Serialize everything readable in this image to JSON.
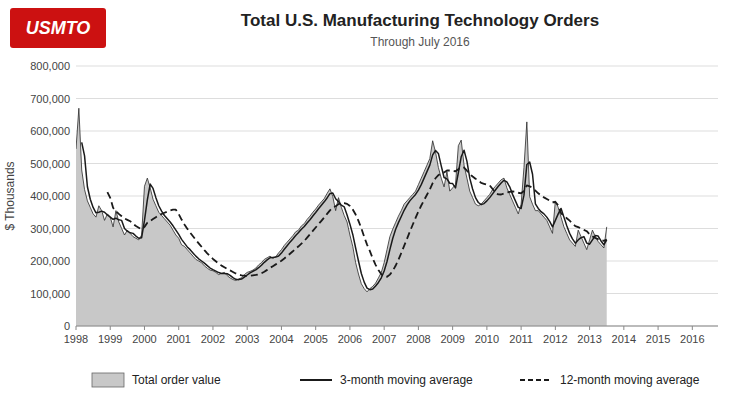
{
  "chart_data": {
    "type": "area",
    "title": "Total U.S. Manufacturing Technology Orders",
    "subtitle": "Through July 2016",
    "ylabel": "$ Thousands",
    "annotations": [
      "USMTO"
    ],
    "xlim": [
      1998,
      2016.75
    ],
    "xticks": [
      1998,
      1999,
      2000,
      2001,
      2002,
      2003,
      2004,
      2005,
      2006,
      2007,
      2008,
      2009,
      2010,
      2011,
      2012,
      2013,
      2014,
      2015,
      2016
    ],
    "ylim": [
      0,
      800000
    ],
    "yticks": [
      0,
      {
        "value": 100000,
        "label": "100,000"
      },
      {
        "value": 200000,
        "label": "200,000"
      },
      {
        "value": 300000,
        "label": "300,000"
      },
      {
        "value": 400000,
        "label": "400,000"
      },
      {
        "value": 500000,
        "label": "500,000"
      },
      {
        "value": 600000,
        "label": "600,000"
      },
      {
        "value": 700000,
        "label": "700,000"
      },
      {
        "value": 800000,
        "label": "800,000"
      }
    ],
    "grid": "y",
    "legend": "bottom",
    "x": [
      1998,
      1998.0833333333,
      1998.1666666667,
      1998.25,
      1998.3333333333,
      1998.4166666667,
      1998.5,
      1998.5833333333,
      1998.6666666667,
      1998.75,
      1998.8333333333,
      1998.9166666667,
      1999,
      1999.0833333333,
      1999.1666666667,
      1999.25,
      1999.3333333333,
      1999.4166666667,
      1999.5,
      1999.5833333333,
      1999.6666666667,
      1999.75,
      1999.8333333333,
      1999.9166666667,
      2000,
      2000.0833333333,
      2000.1666666667,
      2000.25,
      2000.3333333333,
      2000.4166666667,
      2000.5,
      2000.5833333333,
      2000.6666666667,
      2000.75,
      2000.8333333333,
      2000.9166666667,
      2001,
      2001.0833333333,
      2001.1666666667,
      2001.25,
      2001.3333333333,
      2001.4166666667,
      2001.5,
      2001.5833333333,
      2001.6666666667,
      2001.75,
      2001.8333333333,
      2001.9166666667,
      2002,
      2002.0833333333,
      2002.1666666667,
      2002.25,
      2002.3333333333,
      2002.4166666667,
      2002.5,
      2002.5833333333,
      2002.6666666667,
      2002.75,
      2002.8333333333,
      2002.9166666667,
      2003,
      2003.0833333333,
      2003.1666666667,
      2003.25,
      2003.3333333333,
      2003.4166666667,
      2003.5,
      2003.5833333333,
      2003.6666666667,
      2003.75,
      2003.8333333333,
      2003.9166666667,
      2004,
      2004.0833333333,
      2004.1666666667,
      2004.25,
      2004.3333333333,
      2004.4166666667,
      2004.5,
      2004.5833333333,
      2004.6666666667,
      2004.75,
      2004.8333333333,
      2004.9166666667,
      2005,
      2005.0833333333,
      2005.1666666667,
      2005.25,
      2005.3333333333,
      2005.4166666667,
      2005.5,
      2005.5833333333,
      2005.6666666667,
      2005.75,
      2005.8333333333,
      2005.9166666667,
      2006,
      2006.0833333333,
      2006.1666666667,
      2006.25,
      2006.3333333333,
      2006.4166666667,
      2006.5,
      2006.5833333333,
      2006.6666666667,
      2006.75,
      2006.8333333333,
      2006.9166666667,
      2007,
      2007.0833333333,
      2007.1666666667,
      2007.25,
      2007.3333333333,
      2007.4166666667,
      2007.5,
      2007.5833333333,
      2007.6666666667,
      2007.75,
      2007.8333333333,
      2007.9166666667,
      2008,
      2008.0833333333,
      2008.1666666667,
      2008.25,
      2008.3333333333,
      2008.4166666667,
      2008.5,
      2008.5833333333,
      2008.6666666667,
      2008.75,
      2008.8333333333,
      2008.9166666667,
      2009,
      2009.0833333333,
      2009.1666666667,
      2009.25,
      2009.3333333333,
      2009.4166666667,
      2009.5,
      2009.5833333333,
      2009.6666666667,
      2009.75,
      2009.8333333333,
      2009.9166666667,
      2010,
      2010.0833333333,
      2010.1666666667,
      2010.25,
      2010.3333333333,
      2010.4166666667,
      2010.5,
      2010.5833333333,
      2010.6666666667,
      2010.75,
      2010.8333333333,
      2010.9166666667,
      2011,
      2011.0833333333,
      2011.1666666667,
      2011.25,
      2011.3333333333,
      2011.4166666667,
      2011.5,
      2011.5833333333,
      2011.6666666667,
      2011.75,
      2011.8333333333,
      2011.9166666667,
      2012,
      2012.0833333333,
      2012.1666666667,
      2012.25,
      2012.3333333333,
      2012.4166666667,
      2012.5,
      2012.5833333333,
      2012.6666666667,
      2012.75,
      2012.8333333333,
      2012.9166666667,
      2013,
      2013.0833333333,
      2013.1666666667,
      2013.25,
      2013.3333333333,
      2013.4166666667,
      2013.5
    ],
    "series": [
      {
        "name": "Total order value",
        "type": "area",
        "color": "#c8c8c8",
        "values": [
          545000,
          670000,
          480000,
          420000,
          385000,
          365000,
          345000,
          335000,
          370000,
          355000,
          325000,
          345000,
          335000,
          305000,
          355000,
          320000,
          300000,
          280000,
          295000,
          285000,
          275000,
          270000,
          265000,
          280000,
          430000,
          455000,
          425000,
          390000,
          370000,
          350000,
          340000,
          330000,
          320000,
          310000,
          295000,
          280000,
          270000,
          250000,
          245000,
          235000,
          225000,
          215000,
          205000,
          200000,
          195000,
          185000,
          178000,
          172000,
          170000,
          165000,
          158000,
          162000,
          165000,
          155000,
          148000,
          143000,
          140000,
          145000,
          148000,
          158000,
          165000,
          168000,
          172000,
          178000,
          188000,
          195000,
          205000,
          210000,
          215000,
          208000,
          213000,
          225000,
          235000,
          248000,
          258000,
          268000,
          278000,
          290000,
          295000,
          308000,
          315000,
          328000,
          338000,
          350000,
          360000,
          372000,
          382000,
          392000,
          408000,
          422000,
          398000,
          355000,
          395000,
          365000,
          340000,
          320000,
          280000,
          245000,
          195000,
          160000,
          130000,
          115000,
          105000,
          115000,
          122000,
          132000,
          148000,
          165000,
          195000,
          235000,
          275000,
          298000,
          318000,
          338000,
          355000,
          375000,
          385000,
          395000,
          405000,
          415000,
          435000,
          455000,
          475000,
          495000,
          515000,
          570000,
          535000,
          488000,
          455000,
          428000,
          475000,
          415000,
          425000,
          435000,
          555000,
          572000,
          495000,
          455000,
          415000,
          395000,
          375000,
          370000,
          375000,
          385000,
          395000,
          405000,
          420000,
          430000,
          440000,
          450000,
          455000,
          425000,
          405000,
          385000,
          365000,
          345000,
          375000,
          488000,
          628000,
          398000,
          375000,
          355000,
          355000,
          345000,
          335000,
          325000,
          305000,
          285000,
          385000,
          365000,
          335000,
          305000,
          285000,
          265000,
          255000,
          245000,
          295000,
          275000,
          255000,
          235000,
          265000,
          295000,
          275000,
          260000,
          250000,
          240000,
          305000
        ]
      },
      {
        "name": "3-month moving average",
        "type": "line",
        "color": "#1a1a1a",
        "line_style": "solid",
        "values": [
          null,
          null,
          565000,
          523333.3333333333,
          428333.3333333333,
          390000,
          365000,
          348333.3333333333,
          350000,
          353333.3333333333,
          350000,
          341666.6666666667,
          335000,
          328333.3333333333,
          331666.6666666667,
          326666.6666666667,
          325000,
          300000,
          291666.6666666667,
          286666.6666666667,
          285000,
          276666.6666666667,
          270000,
          271666.6666666667,
          325000,
          388333.3333333333,
          436666.6666666667,
          423333.3333333333,
          395000,
          370000,
          353333.3333333333,
          340000,
          330000,
          320000,
          308333.3333333333,
          295000,
          281666.6666666667,
          266666.6666666667,
          255000,
          243333.3333333333,
          235000,
          225000,
          215000,
          206666.6666666667,
          200000,
          193333.3333333333,
          186000,
          178333.3333333333,
          173333.3333333333,
          169000,
          164333.3333333333,
          161666.6666666667,
          161666.6666666667,
          160666.6666666667,
          156000,
          148666.6666666667,
          143666.6666666667,
          142666.6666666667,
          144333.3333333333,
          150333.3333333333,
          157000,
          163666.6666666667,
          168333.3333333333,
          172666.6666666667,
          179333.3333333333,
          187000,
          196000,
          203333.3333333333,
          210000,
          211000,
          212000,
          215333.3333333333,
          224333.3333333333,
          236000,
          247000,
          258000,
          268000,
          278666.6666666667,
          287666.6666666667,
          297666.6666666667,
          306000,
          317000,
          327000,
          338666.6666666667,
          349333.3333333333,
          360666.6666666667,
          371333.3333333333,
          382000,
          394000,
          407333.3333333333,
          409333.3333333333,
          391666.6666666667,
          382666.6666666667,
          371666.6666666667,
          366666.6666666667,
          341666.6666666667,
          313333.3333333333,
          281666.6666666667,
          240000,
          200000,
          161666.6666666667,
          135000,
          116666.6666666667,
          111666.6666666667,
          114000,
          123000,
          134000,
          148333.3333333333,
          169333.3333333333,
          198333.3333333333,
          235000,
          269333.3333333333,
          297000,
          318000,
          337000,
          356000,
          371666.6666666667,
          385000,
          395000,
          405000,
          418333.3333333333,
          435000,
          455000,
          475000,
          495000,
          526666.6666666667,
          540000,
          531000,
          492666.6666666667,
          457000,
          452666.6666666667,
          439333.3333333333,
          438333.3333333333,
          425000,
          471666.6666666667,
          520666.6666666667,
          540666.6666666667,
          507333.3333333333,
          455000,
          421666.6666666667,
          395000,
          380000,
          373333.3333333333,
          376666.6666666667,
          385000,
          395000,
          406666.6666666667,
          418333.3333333333,
          430000,
          440000,
          448333.3333333333,
          443333.3333333333,
          428333.3333333333,
          405000,
          385000,
          365000,
          361666.6666666667,
          402666.6666666667,
          497000,
          504666.6666666667,
          467000,
          376000,
          361666.6666666667,
          351666.6666666667,
          345000,
          335000,
          321666.6666666667,
          305000,
          325000,
          345000,
          361666.6666666667,
          335000,
          308333.3333333333,
          285000,
          268333.3333333333,
          255000,
          265000,
          271666.6666666667,
          275000,
          255000,
          251666.6666666667,
          265000,
          278333.3333333333,
          276666.6666666667,
          261666.6666666667,
          250000,
          265000
        ]
      },
      {
        "name": "12-month moving average",
        "type": "line",
        "color": "#1a1a1a",
        "line_style": "dashed",
        "values": [
          null,
          null,
          null,
          null,
          null,
          null,
          null,
          null,
          null,
          null,
          null,
          411666.6666666667,
          394166.6666666667,
          363750,
          353333.3333333333,
          345000,
          337916.6666666667,
          330833.3333333333,
          326666.6666666667,
          322500,
          314583.3333333333,
          307500,
          302500,
          297083.3333333333,
          305000,
          317500,
          323333.3333333333,
          329166.6666666667,
          335000,
          340833.3333333333,
          344583.3333333333,
          348333.3333333333,
          352083.3333333333,
          355416.6666666667,
          357916.6666666667,
          357916.6666666667,
          344583.3333333333,
          327500,
          312500,
          299583.3333333333,
          287500,
          276250,
          265000,
          254166.6666666667,
          243750,
          233333.3333333333,
          223583.3333333333,
          214583.3333333333,
          206250,
          199166.6666666667,
          191916.6666666667,
          185833.3333333333,
          180833.3333333333,
          175833.3333333333,
          171083.3333333333,
          166333.3333333333,
          161750,
          158416.6666666667,
          155916.6666666667,
          154750,
          154333.3333333333,
          154583.3333333333,
          155750,
          157083.3333333333,
          159000,
          162333.3333333333,
          167083.3333333333,
          172666.6666666667,
          178916.6666666667,
          184166.6666666667,
          189583.3333333333,
          195166.6666666667,
          201000,
          207666.6666666667,
          214833.3333333333,
          222333.3333333333,
          229833.3333333333,
          237750,
          245250,
          253416.6666666667,
          261750,
          271750,
          282166.6666666667,
          292583.3333333333,
          303000,
          313333.3333333333,
          323666.6666666667,
          334000,
          344833.3333333333,
          355833.3333333333,
          364416.6666666667,
          368333.3333333333,
          375000,
          378083.3333333333,
          378250,
          375750,
          369083.3333333333,
          358500,
          342916.6666666667,
          323583.3333333333,
          300416.6666666667,
          274833.3333333333,
          250416.6666666667,
          230416.6666666667,
          207666.6666666667,
          188250,
          172250,
          159333.3333333333,
          152250,
          151416.6666666667,
          158083.3333333333,
          169583.3333333333,
          185250,
          203833.3333333333,
          224666.6666666667,
          246333.3333333333,
          268250,
          290166.6666666667,
          311583.3333333333,
          332416.6666666667,
          352416.6666666667,
          370750,
          387416.6666666667,
          403833.3333333333,
          420250,
          439583.3333333333,
          454583.3333333333,
          464000,
          469833.3333333333,
          472583.3333333333,
          478416.6666666667,
          478416.6666666667,
          477583.3333333333,
          475916.6666666667,
          482583.3333333333,
          489000,
          487333.3333333333,
          477750,
          467750,
          460000,
          453333.3333333333,
          448500,
          440166.6666666667,
          437666.6666666667,
          435166.6666666667,
          432666.6666666667,
          421416.6666666667,
          409583.3333333333,
          405000,
          404583.3333333333,
          407916.6666666667,
          410416.6666666667,
          412916.6666666667,
          414166.6666666667,
          413333.3333333333,
          410000,
          408333.3333333333,
          415250,
          432583.3333333333,
          429916.6666666667,
          424500,
          416583.3333333333,
          408250,
          401583.3333333333,
          395750,
          390750,
          385750,
          380750,
          381583.3333333333,
          371333.3333333333,
          346916.6666666667,
          339166.6666666667,
          331666.6666666667,
          324166.6666666667,
          315833.3333333333,
          307500,
          304166.6666666667,
          300000,
          295833.3333333333,
          291666.6666666667,
          281666.6666666667,
          275833.3333333333,
          270833.3333333333,
          267083.3333333333,
          264166.6666666667,
          262083.3333333333,
          266250
        ]
      }
    ]
  }
}
